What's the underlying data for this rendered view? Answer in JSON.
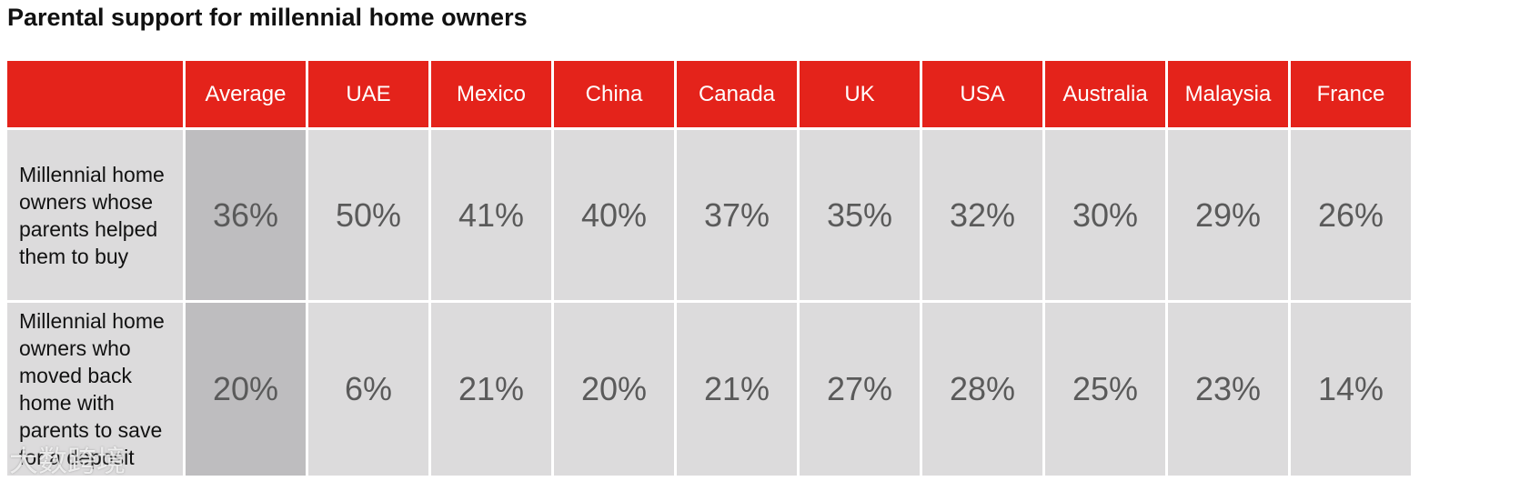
{
  "title": "Parental support for millennial home owners",
  "chart_data": {
    "type": "table",
    "title": "Parental support for millennial home owners",
    "columns": [
      "Average",
      "UAE",
      "Mexico",
      "China",
      "Canada",
      "UK",
      "USA",
      "Australia",
      "Malaysia",
      "France"
    ],
    "rows": [
      {
        "label": "Millennial home owners whose parents helped them to buy",
        "values": [
          "36%",
          "50%",
          "41%",
          "40%",
          "37%",
          "35%",
          "32%",
          "30%",
          "29%",
          "26%"
        ]
      },
      {
        "label": "Millennial home owners who moved back home with parents to save for a deposit",
        "values": [
          "20%",
          "6%",
          "21%",
          "20%",
          "21%",
          "27%",
          "28%",
          "25%",
          "23%",
          "14%"
        ]
      }
    ]
  },
  "colors": {
    "header_bg": "#e4231b",
    "header_text": "#ffffff",
    "cell_bg": "#dcdbdc",
    "average_bg": "#bebdbf",
    "value_text": "#5a5a5a"
  },
  "watermark": "大数跨境"
}
